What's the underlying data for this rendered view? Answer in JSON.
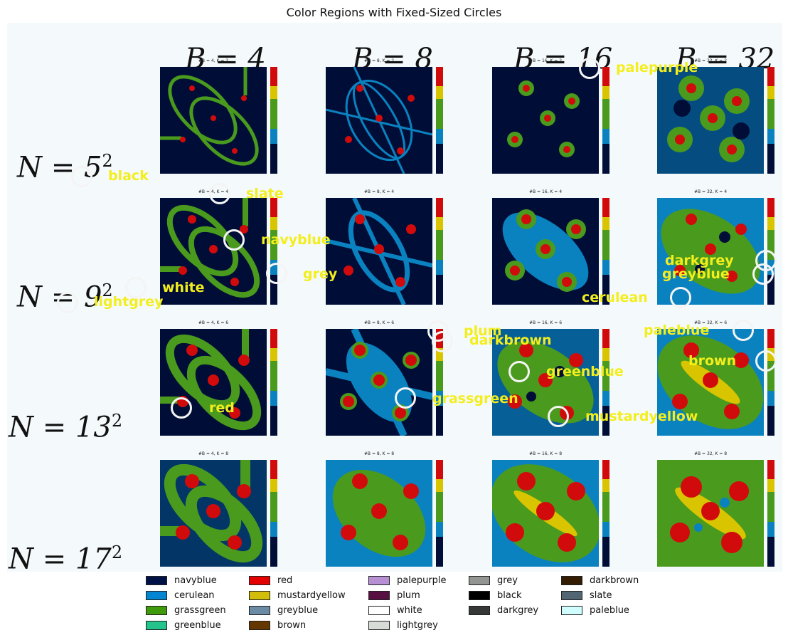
{
  "title": "Color Regions with Fixed-Sized Circles",
  "columns": [
    {
      "label": "B = 4"
    },
    {
      "label": "B = 8"
    },
    {
      "label": "B = 16"
    },
    {
      "label": "B = 32"
    }
  ],
  "rows": [
    {
      "base": "N = 5",
      "exp": "2"
    },
    {
      "base": "N = 9",
      "exp": "2"
    },
    {
      "base": "N = 13",
      "exp": "2"
    },
    {
      "base": "N = 17",
      "exp": "2"
    }
  ],
  "panels": [
    [
      "#B = 4, K = 2",
      "#B = 8, K = 2",
      "#B = 16, K = 2",
      "#B = 32, K = 2"
    ],
    [
      "#B = 4, K = 4",
      "#B = 8, K = 4",
      "#B = 16, K = 4",
      "#B = 32, K = 4"
    ],
    [
      "#B = 4, K = 6",
      "#B = 8, K = 6",
      "#B = 16, K = 6",
      "#B = 32, K = 6"
    ],
    [
      "#B = 4, K = 8",
      "#B = 8, K = 8",
      "#B = 16, K = 8",
      "#B = 32, K = 8"
    ]
  ],
  "annotations": [
    "palepurple",
    "black",
    "slate",
    "navyblue",
    "grey",
    "white",
    "lightgrey",
    "darkgrey",
    "greyblue",
    "cerulean",
    "plum",
    "darkbrown",
    "paleblue",
    "brown",
    "greenblue",
    "grassgreen",
    "red",
    "mustardyellow"
  ],
  "colors": {
    "navy": "#000e37",
    "cerulean": "#0a82c0",
    "grass": "#4a9a1e",
    "red": "#d10b0b",
    "yellow": "#d9c400",
    "annotation": "#f3ee1c"
  },
  "legend": [
    [
      {
        "label": "navyblue",
        "color": "#001146"
      },
      {
        "label": "cerulean",
        "color": "#0485d1"
      },
      {
        "label": "grassgreen",
        "color": "#3f9b0b"
      },
      {
        "label": "greenblue",
        "color": "#23c48b"
      }
    ],
    [
      {
        "label": "red",
        "color": "#e50000"
      },
      {
        "label": "mustardyellow",
        "color": "#d2bd0a"
      },
      {
        "label": "greyblue",
        "color": "#6b8ba4"
      },
      {
        "label": "brown",
        "color": "#653700"
      }
    ],
    [
      {
        "label": "palepurple",
        "color": "#b790d4"
      },
      {
        "label": "plum",
        "color": "#580f41"
      },
      {
        "label": "white",
        "color": "#ffffff"
      },
      {
        "label": "lightgrey",
        "color": "#d8dcd6"
      }
    ],
    [
      {
        "label": "grey",
        "color": "#929591"
      },
      {
        "label": "black",
        "color": "#000000"
      },
      {
        "label": "darkgrey",
        "color": "#363737"
      }
    ],
    [
      {
        "label": "darkbrown",
        "color": "#341c02"
      },
      {
        "label": "slate",
        "color": "#516572"
      },
      {
        "label": "paleblue",
        "color": "#d0fefe"
      }
    ]
  ]
}
